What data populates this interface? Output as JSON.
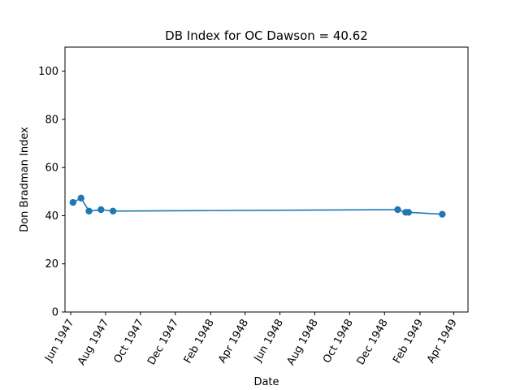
{
  "chart_data": {
    "type": "line",
    "title": "DB Index for OC Dawson = 40.62",
    "xlabel": "Date",
    "ylabel": "Don Bradman Index",
    "xlim": [
      "1947-05-22",
      "1949-04-26"
    ],
    "ylim": [
      0,
      110
    ],
    "x_ticks": [
      {
        "date": "1947-06-01",
        "label": "Jun 1947"
      },
      {
        "date": "1947-08-01",
        "label": "Aug 1947"
      },
      {
        "date": "1947-10-01",
        "label": "Oct 1947"
      },
      {
        "date": "1947-12-01",
        "label": "Dec 1947"
      },
      {
        "date": "1948-02-01",
        "label": "Feb 1948"
      },
      {
        "date": "1948-04-01",
        "label": "Apr 1948"
      },
      {
        "date": "1948-06-01",
        "label": "Jun 1948"
      },
      {
        "date": "1948-08-01",
        "label": "Aug 1948"
      },
      {
        "date": "1948-10-01",
        "label": "Oct 1948"
      },
      {
        "date": "1948-12-01",
        "label": "Dec 1948"
      },
      {
        "date": "1949-02-01",
        "label": "Feb 1949"
      },
      {
        "date": "1949-04-01",
        "label": "Apr 1949"
      }
    ],
    "y_ticks": [
      0,
      20,
      40,
      60,
      80,
      100
    ],
    "grid": false,
    "line_color": "#1f77b4",
    "series": [
      {
        "x": [
          "1947-06-05",
          "1947-06-19",
          "1947-07-03",
          "1947-07-24",
          "1947-08-14",
          "1948-12-24",
          "1949-01-07",
          "1949-01-12",
          "1949-03-12"
        ],
        "y": [
          45.5,
          47.3,
          41.9,
          42.5,
          41.9,
          42.5,
          41.4,
          41.4,
          40.6
        ]
      }
    ]
  }
}
